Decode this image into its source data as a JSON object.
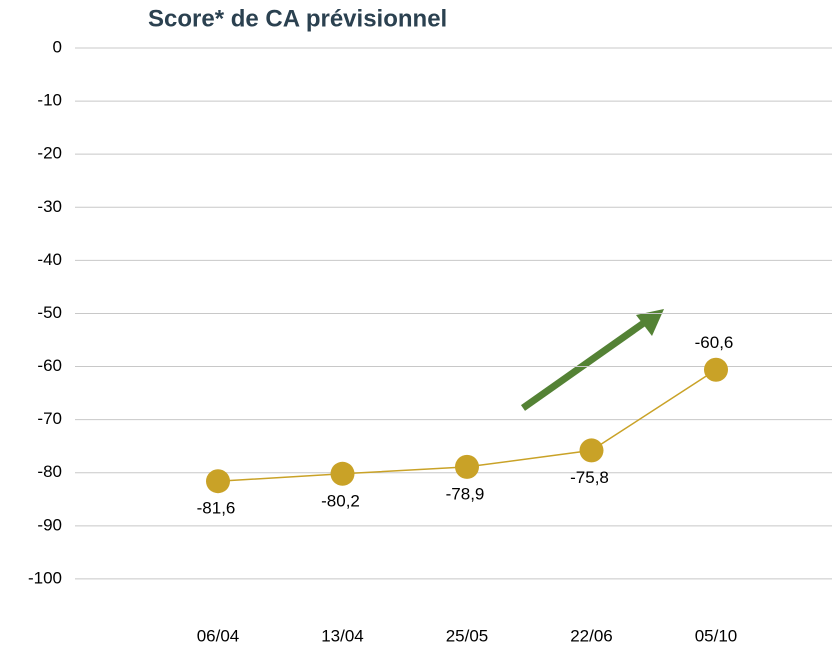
{
  "chart_data": {
    "type": "line",
    "title": "Score* de CA prévisionnel",
    "categories": [
      "06/04",
      "13/04",
      "25/05",
      "22/06",
      "05/10"
    ],
    "series": [
      {
        "color": "#c9a227",
        "values": [
          -81.6,
          -80.2,
          -78.9,
          -75.8,
          -60.6
        ],
        "value_labels": [
          "-81,6",
          "-80,2",
          "-78,9",
          "-75,8",
          "-60,6"
        ]
      }
    ],
    "ylim": [
      -110,
      0
    ],
    "yticks": [
      0,
      -10,
      -20,
      -30,
      -40,
      -50,
      -60,
      -70,
      -80,
      -90,
      -100
    ],
    "grid": true
  }
}
